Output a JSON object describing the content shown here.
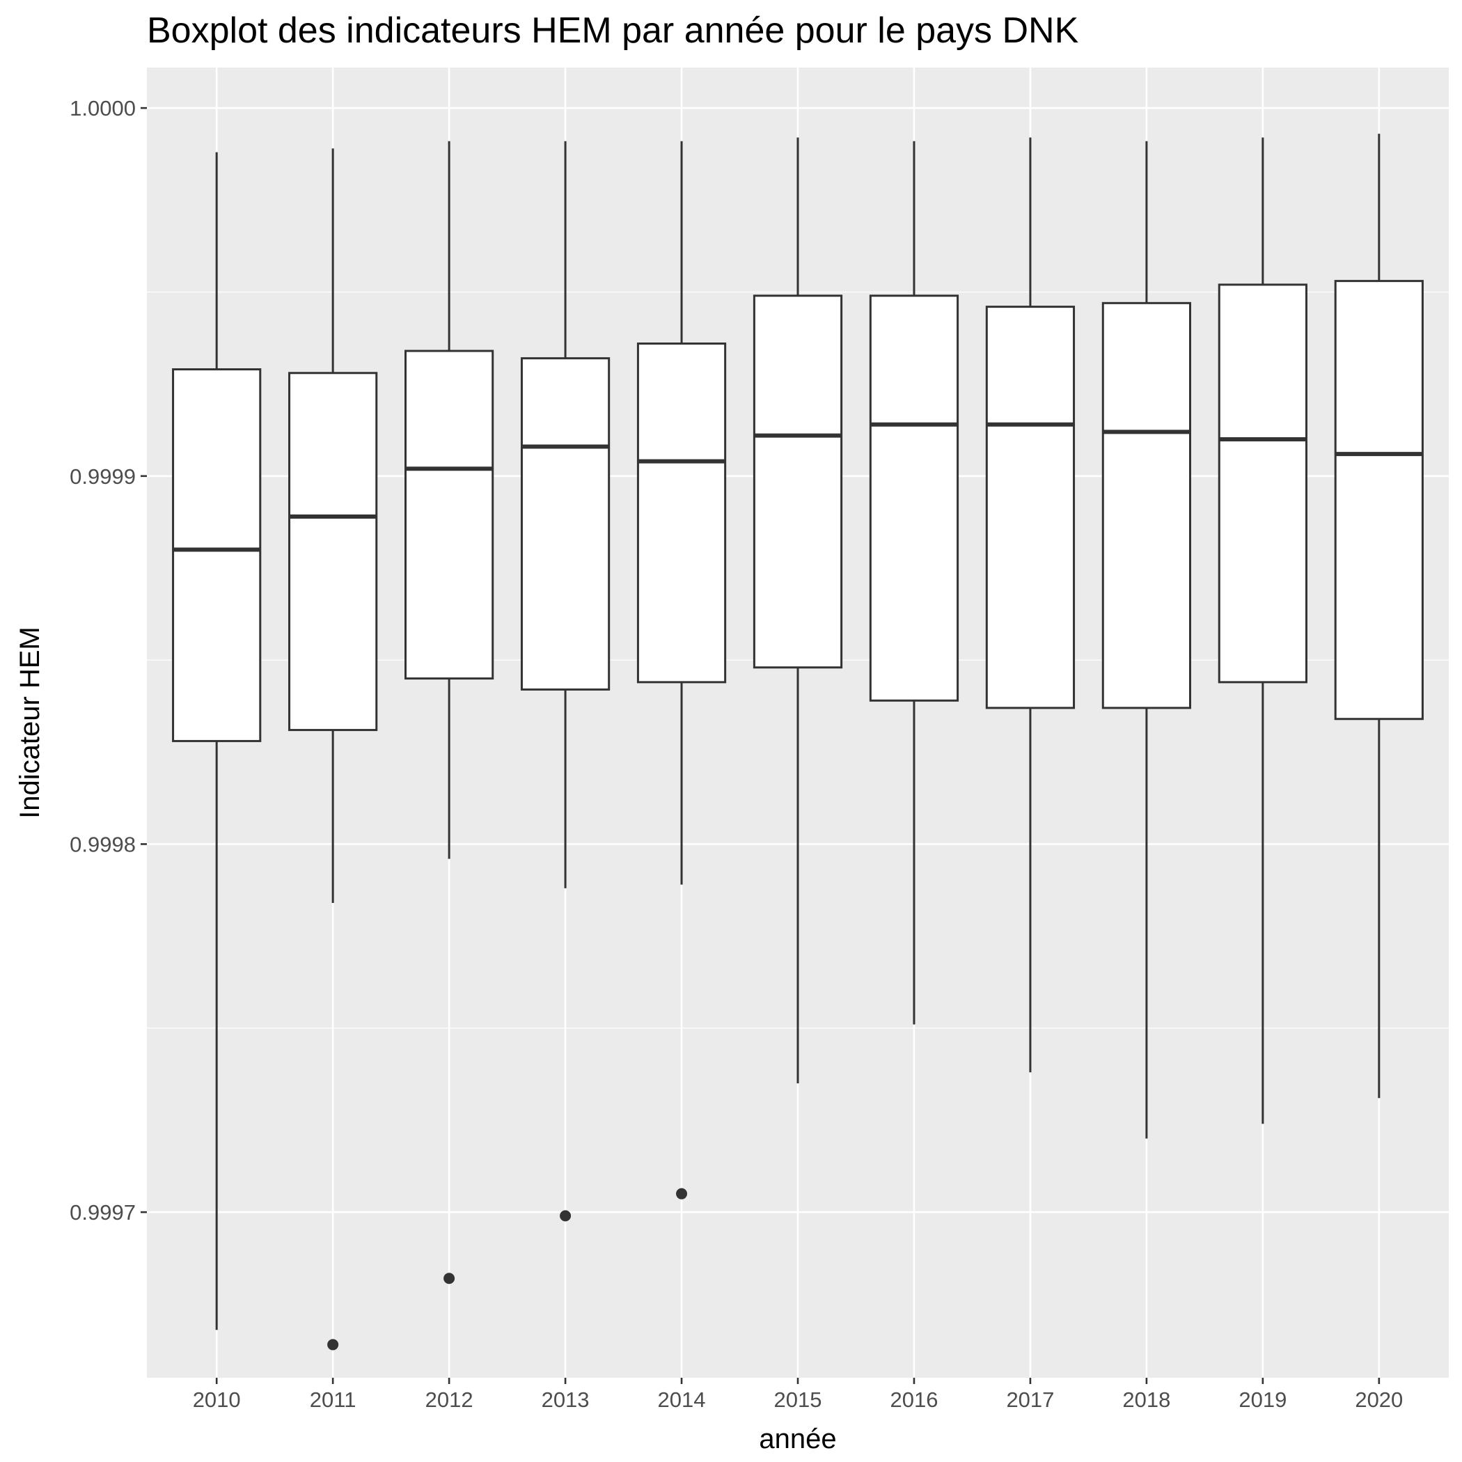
{
  "chart_data": {
    "type": "boxplot",
    "title": "Boxplot des indicateurs HEM par année pour le pays DNK",
    "xlabel": "année",
    "ylabel": "Indicateur HEM",
    "ylim": [
      0.999655,
      1.000011
    ],
    "y_ticks": [
      {
        "value": 0.9997,
        "label": "0.9997"
      },
      {
        "value": 0.9998,
        "label": "0.9998"
      },
      {
        "value": 0.9999,
        "label": "0.9999"
      },
      {
        "value": 1.0,
        "label": "1.0000"
      }
    ],
    "y_minor_ticks": [
      0.99975,
      0.99985,
      0.99995
    ],
    "grid": true,
    "legend": "none",
    "categories": [
      "2010",
      "2011",
      "2012",
      "2013",
      "2014",
      "2015",
      "2016",
      "2017",
      "2018",
      "2019",
      "2020"
    ],
    "boxes": [
      {
        "category": "2010",
        "whisker_low": 0.999668,
        "q1": 0.999828,
        "median": 0.99988,
        "q3": 0.999929,
        "whisker_high": 0.999988,
        "outliers": []
      },
      {
        "category": "2011",
        "whisker_low": 0.999784,
        "q1": 0.999831,
        "median": 0.999889,
        "q3": 0.999928,
        "whisker_high": 0.999989,
        "outliers": [
          0.999664
        ]
      },
      {
        "category": "2012",
        "whisker_low": 0.999796,
        "q1": 0.999845,
        "median": 0.999902,
        "q3": 0.999934,
        "whisker_high": 0.999991,
        "outliers": [
          0.999682
        ]
      },
      {
        "category": "2013",
        "whisker_low": 0.999788,
        "q1": 0.999842,
        "median": 0.999908,
        "q3": 0.999932,
        "whisker_high": 0.999991,
        "outliers": [
          0.999699
        ]
      },
      {
        "category": "2014",
        "whisker_low": 0.999789,
        "q1": 0.999844,
        "median": 0.999904,
        "q3": 0.999936,
        "whisker_high": 0.999991,
        "outliers": [
          0.999705
        ]
      },
      {
        "category": "2015",
        "whisker_low": 0.999735,
        "q1": 0.999848,
        "median": 0.999911,
        "q3": 0.999949,
        "whisker_high": 0.999992,
        "outliers": []
      },
      {
        "category": "2016",
        "whisker_low": 0.999751,
        "q1": 0.999839,
        "median": 0.999914,
        "q3": 0.999949,
        "whisker_high": 0.999991,
        "outliers": []
      },
      {
        "category": "2017",
        "whisker_low": 0.999738,
        "q1": 0.999837,
        "median": 0.999914,
        "q3": 0.999946,
        "whisker_high": 0.999992,
        "outliers": []
      },
      {
        "category": "2018",
        "whisker_low": 0.99972,
        "q1": 0.999837,
        "median": 0.999912,
        "q3": 0.999947,
        "whisker_high": 0.999991,
        "outliers": []
      },
      {
        "category": "2019",
        "whisker_low": 0.999724,
        "q1": 0.999844,
        "median": 0.99991,
        "q3": 0.999952,
        "whisker_high": 0.999992,
        "outliers": []
      },
      {
        "category": "2020",
        "whisker_low": 0.999731,
        "q1": 0.999834,
        "median": 0.999906,
        "q3": 0.999953,
        "whisker_high": 0.999993,
        "outliers": []
      }
    ],
    "colors": {
      "panel_background": "#ebebeb",
      "grid_major": "#ffffff",
      "box_fill": "#ffffff",
      "box_stroke": "#333333",
      "tick_text": "#4d4d4d",
      "tick_mark": "#333333",
      "text": "#000000"
    }
  }
}
